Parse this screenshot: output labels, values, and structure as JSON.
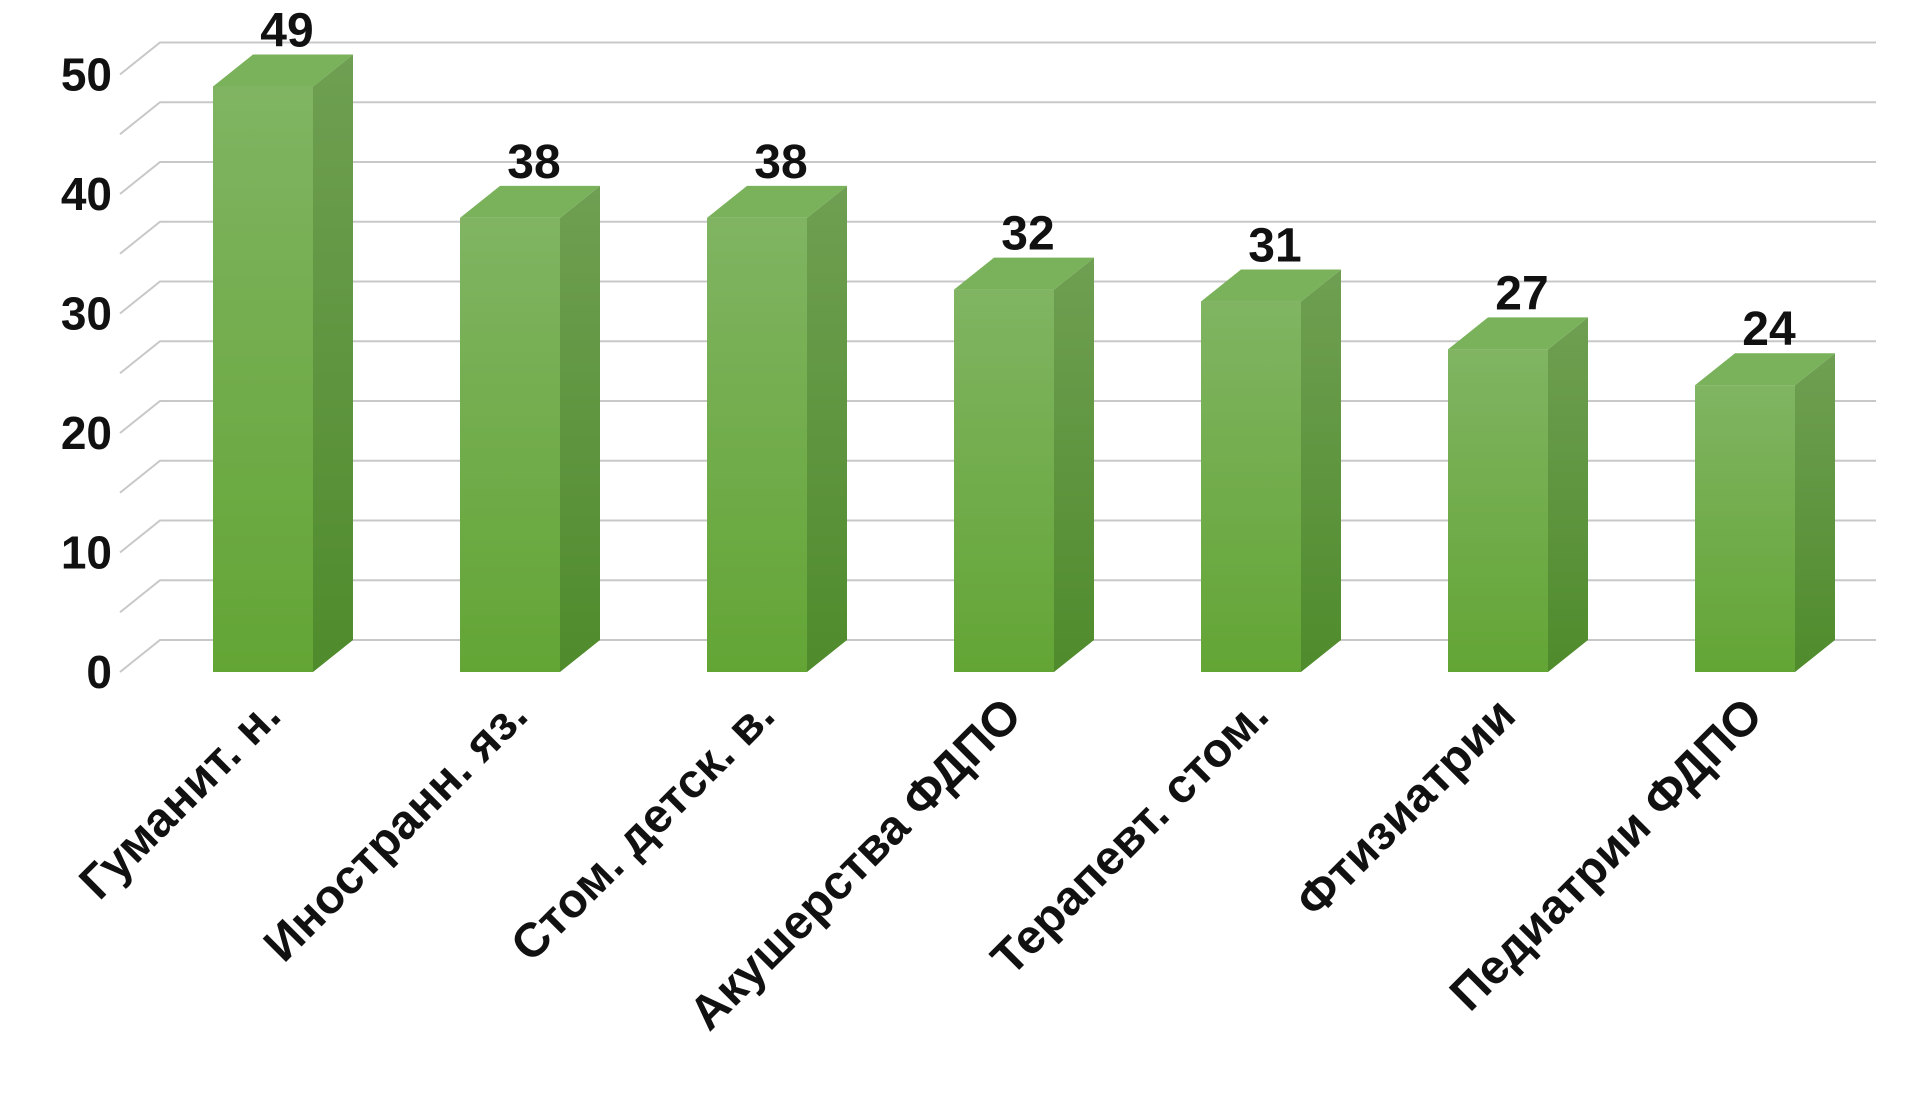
{
  "chart_data": {
    "type": "bar",
    "categories": [
      "Гуманит. н.",
      "Иностранн. яз.",
      "Стом. детск. в.",
      "Акушерства ФДПО",
      "Терапевт. стом.",
      "Фтизиатрии",
      "Педиатрии ФДПО"
    ],
    "values": [
      49,
      38,
      38,
      32,
      31,
      27,
      24
    ],
    "data_labels": [
      "49",
      "38",
      "38",
      "32",
      "31",
      "27",
      "24"
    ],
    "yticks": [
      "0",
      "10",
      "20",
      "30",
      "40",
      "50"
    ],
    "ylim": [
      0,
      50
    ],
    "grid": true,
    "legend": "none",
    "style": "3d-column",
    "colors": {
      "bar_front_top": "#80b462",
      "bar_front_bottom": "#63a535",
      "bar_side_top": "#6f9f52",
      "bar_side_bottom": "#4f8b2c",
      "bar_top": "#79b25a",
      "grid": "#c8c8c8",
      "text": "#111111"
    }
  }
}
